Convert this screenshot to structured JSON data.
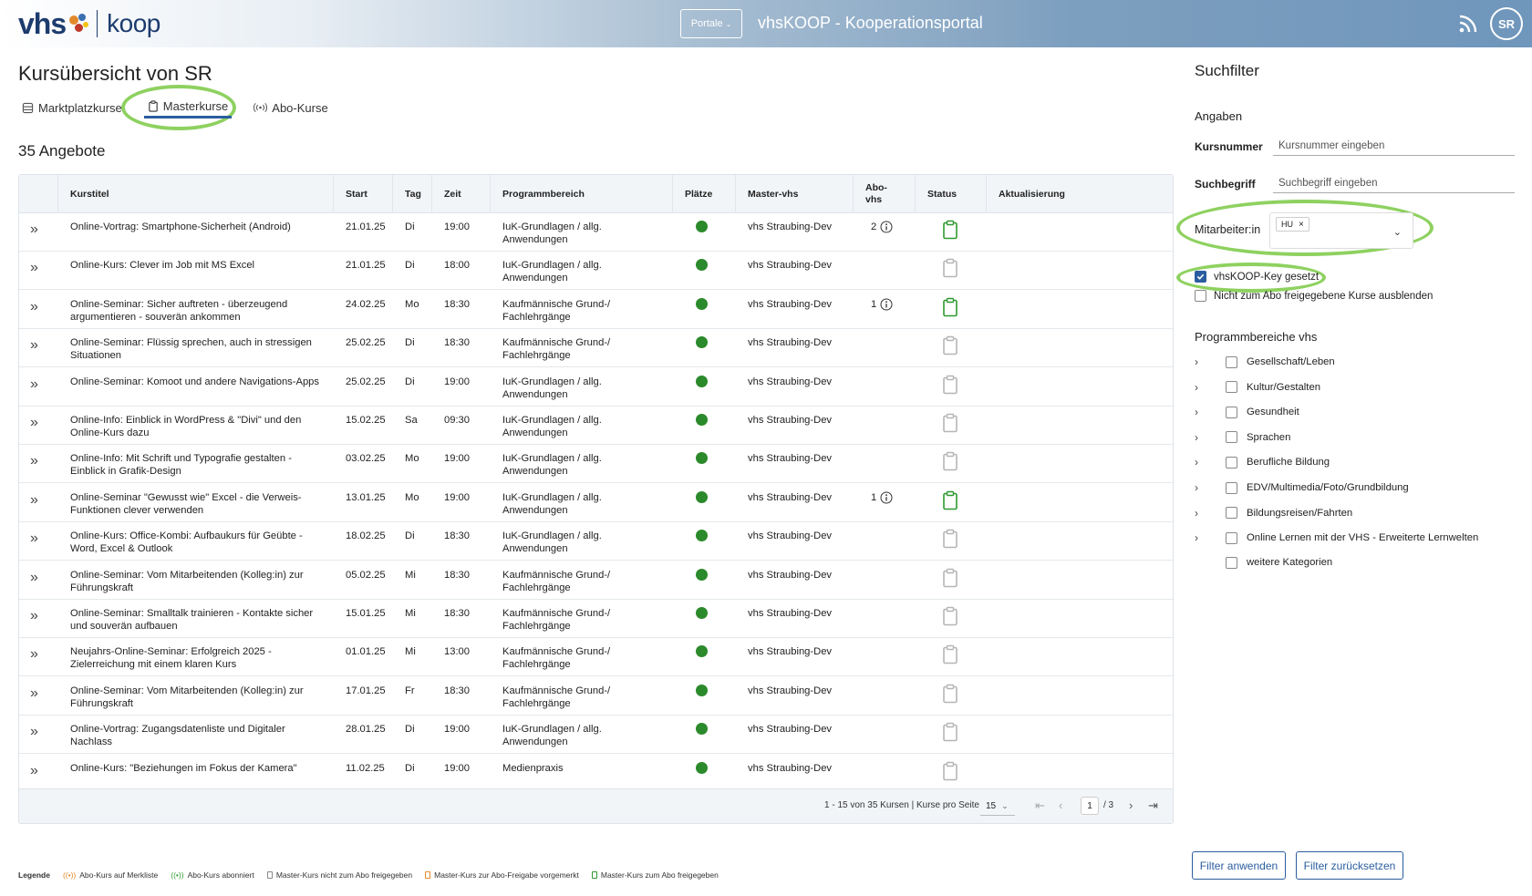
{
  "header": {
    "logo_vhs": "vhs",
    "logo_koop": "koop",
    "portale_label": "Portale",
    "app_title": "vhsKOOP - Kooperationsportal",
    "avatar_initials": "SR"
  },
  "page": {
    "title": "Kursübersicht von SR",
    "tabs": [
      {
        "label": "Marktplatzkurse",
        "icon": "stack-icon"
      },
      {
        "label": "Masterkurse",
        "icon": "clipboard-icon"
      },
      {
        "label": "Abo-Kurse",
        "icon": "broadcast-icon"
      }
    ],
    "count_label": "35 Angebote"
  },
  "table": {
    "headers": [
      "Kurstitel",
      "Start",
      "Tag",
      "Zeit",
      "Programmbereich",
      "Plätze",
      "Master-vhs",
      "Abo-\nvhs",
      "Status",
      "Aktualisierung"
    ],
    "rows": [
      {
        "title": "Online-Vortrag: Smartphone-Sicherheit (Android)",
        "start": "21.01.25",
        "tag": "Di",
        "zeit": "19:00",
        "bereich": "IuK-Grundlagen / allg.\nAnwendungen",
        "master": "vhs Straubing-Dev",
        "abo": "2",
        "status": "green"
      },
      {
        "title": "Online-Kurs: Clever im Job mit MS Excel",
        "start": "21.01.25",
        "tag": "Di",
        "zeit": "18:00",
        "bereich": "IuK-Grundlagen / allg.\nAnwendungen",
        "master": "vhs Straubing-Dev",
        "abo": "",
        "status": "grey"
      },
      {
        "title": "Online-Seminar: Sicher auftreten - überzeugend\nargumentieren - souverän ankommen",
        "start": "24.02.25",
        "tag": "Mo",
        "zeit": "18:30",
        "bereich": "Kaufmännische Grund-/\nFachlehrgänge",
        "master": "vhs Straubing-Dev",
        "abo": "1",
        "status": "green"
      },
      {
        "title": "Online-Seminar: Flüssig sprechen, auch in stressigen\nSituationen",
        "start": "25.02.25",
        "tag": "Di",
        "zeit": "18:30",
        "bereich": "Kaufmännische Grund-/\nFachlehrgänge",
        "master": "vhs Straubing-Dev",
        "abo": "",
        "status": "grey"
      },
      {
        "title": "Online-Seminar: Komoot und andere Navigations-Apps",
        "start": "25.02.25",
        "tag": "Di",
        "zeit": "19:00",
        "bereich": "IuK-Grundlagen / allg.\nAnwendungen",
        "master": "vhs Straubing-Dev",
        "abo": "",
        "status": "grey"
      },
      {
        "title": "Online-Info: Einblick in WordPress & \"Divi\" und den\nOnline-Kurs dazu",
        "start": "15.02.25",
        "tag": "Sa",
        "zeit": "09:30",
        "bereich": "IuK-Grundlagen / allg.\nAnwendungen",
        "master": "vhs Straubing-Dev",
        "abo": "",
        "status": "grey"
      },
      {
        "title": "Online-Info: Mit Schrift und Typografie gestalten -\nEinblick in Grafik-Design",
        "start": "03.02.25",
        "tag": "Mo",
        "zeit": "19:00",
        "bereich": "IuK-Grundlagen / allg.\nAnwendungen",
        "master": "vhs Straubing-Dev",
        "abo": "",
        "status": "grey"
      },
      {
        "title": "Online-Seminar \"Gewusst wie\" Excel - die Verweis-\nFunktionen clever verwenden",
        "start": "13.01.25",
        "tag": "Mo",
        "zeit": "19:00",
        "bereich": "IuK-Grundlagen / allg.\nAnwendungen",
        "master": "vhs Straubing-Dev",
        "abo": "1",
        "status": "green"
      },
      {
        "title": "Online-Kurs: Office-Kombi: Aufbaukurs für Geübte -\nWord, Excel & Outlook",
        "start": "18.02.25",
        "tag": "Di",
        "zeit": "18:30",
        "bereich": "IuK-Grundlagen / allg.\nAnwendungen",
        "master": "vhs Straubing-Dev",
        "abo": "",
        "status": "grey"
      },
      {
        "title": "Online-Seminar: Vom Mitarbeitenden (Kolleg:in) zur\nFührungskraft",
        "start": "05.02.25",
        "tag": "Mi",
        "zeit": "18:30",
        "bereich": "Kaufmännische Grund-/\nFachlehrgänge",
        "master": "vhs Straubing-Dev",
        "abo": "",
        "status": "grey"
      },
      {
        "title": "Online-Seminar: Smalltalk trainieren - Kontakte sicher\nund souverän aufbauen",
        "start": "15.01.25",
        "tag": "Mi",
        "zeit": "18:30",
        "bereich": "Kaufmännische Grund-/\nFachlehrgänge",
        "master": "vhs Straubing-Dev",
        "abo": "",
        "status": "grey"
      },
      {
        "title": "Neujahrs-Online-Seminar: Erfolgreich 2025 -\nZielerreichung mit einem klaren Kurs",
        "start": "01.01.25",
        "tag": "Mi",
        "zeit": "13:00",
        "bereich": "Kaufmännische Grund-/\nFachlehrgänge",
        "master": "vhs Straubing-Dev",
        "abo": "",
        "status": "grey"
      },
      {
        "title": "Online-Seminar: Vom Mitarbeitenden (Kolleg:in) zur\nFührungskraft",
        "start": "17.01.25",
        "tag": "Fr",
        "zeit": "18:30",
        "bereich": "Kaufmännische Grund-/\nFachlehrgänge",
        "master": "vhs Straubing-Dev",
        "abo": "",
        "status": "grey"
      },
      {
        "title": "Online-Vortrag: Zugangsdatenliste und Digitaler\nNachlass",
        "start": "28.01.25",
        "tag": "Di",
        "zeit": "19:00",
        "bereich": "IuK-Grundlagen / allg.\nAnwendungen",
        "master": "vhs Straubing-Dev",
        "abo": "",
        "status": "grey"
      },
      {
        "title": "Online-Kurs: \"Beziehungen im Fokus der Kamera\"",
        "start": "11.02.25",
        "tag": "Di",
        "zeit": "19:00",
        "bereich": "Medienpraxis",
        "master": "vhs Straubing-Dev",
        "abo": "",
        "status": "grey"
      }
    ],
    "footer": {
      "range_text": "1 - 15 von 35 Kursen | Kurse pro Seite",
      "per_page": "15",
      "current_page": "1",
      "total_pages": "/ 3"
    }
  },
  "legend": {
    "title": "Legende",
    "items": [
      "Abo-Kurs auf Merkliste",
      "Abo-Kurs abonniert",
      "Master-Kurs nicht zum Abo freigegeben",
      "Master-Kurs zur Abo-Freigabe vorgemerkt",
      "Master-Kurs zum Abo freigegeben"
    ]
  },
  "sidebar": {
    "title": "Suchfilter",
    "subtitle": "Angaben",
    "kursnummer_label": "Kursnummer",
    "kursnummer_placeholder": "Kursnummer eingeben",
    "suchbegriff_label": "Suchbegriff",
    "suchbegriff_placeholder": "Suchbegriff eingeben",
    "mitarbeiter_label": "Mitarbeiter:in",
    "mitarbeiter_chip": "HU",
    "checkbox_key": "vhsKOOP-Key gesetzt",
    "checkbox_hide": "Nicht zum Abo freigegebene Kurse ausblenden",
    "prog_title": "Programmbereiche vhs",
    "prog_items": [
      "Gesellschaft/Leben",
      "Kultur/Gestalten",
      "Gesundheit",
      "Sprachen",
      "Berufliche Bildung",
      "EDV/Multimedia/Foto/Grundbildung",
      "Bildungsreisen/Fahrten",
      "Online Lernen mit der VHS - Erweiterte Lernwelten",
      "weitere Kategorien"
    ],
    "apply_button": "Filter anwenden",
    "reset_button": "Filter zurücksetzen"
  },
  "colors": {
    "accent": "#2a5d9f",
    "highlight": "#8ed160",
    "available": "#2b8a2b",
    "status_green": "#2e9a2e",
    "status_grey": "#b5b5b5"
  }
}
